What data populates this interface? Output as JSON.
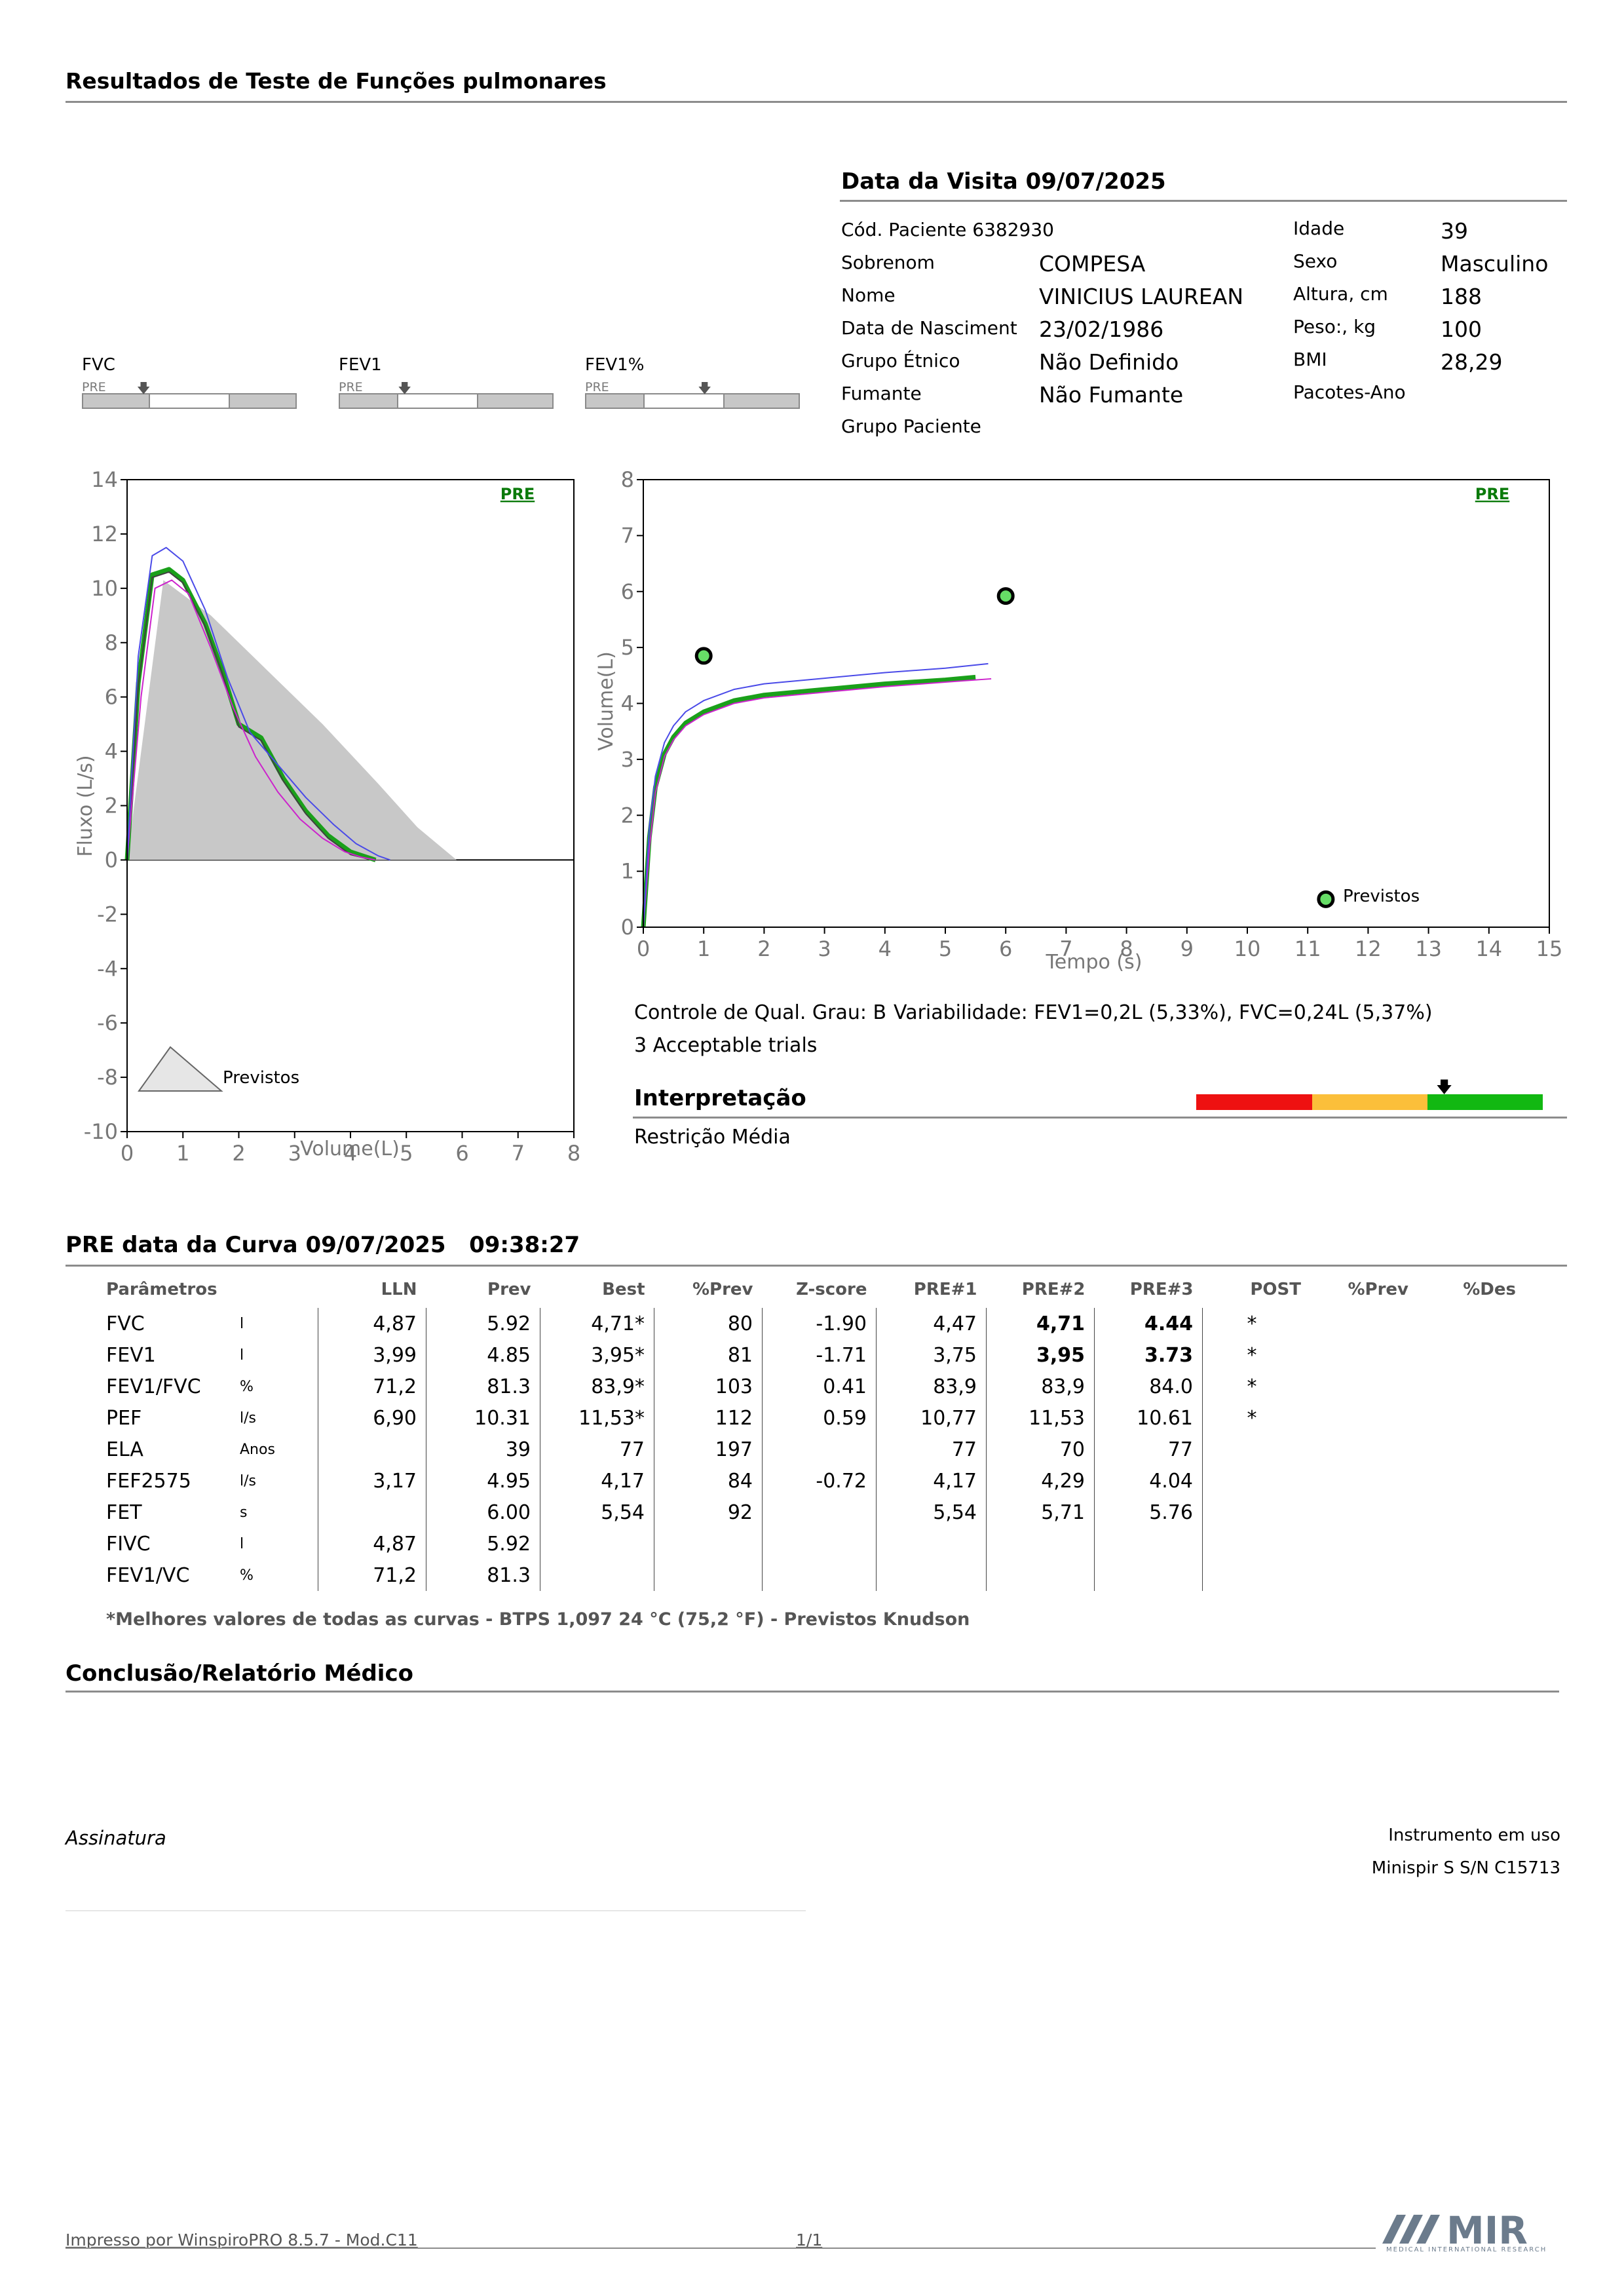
{
  "header": {
    "title": "Resultados de Teste de Funções pulmonares"
  },
  "visit": {
    "title": "Data da Visita 09/07/2025"
  },
  "patient": {
    "code_label": "Cód. Paciente 6382930",
    "surname_label": "Sobrenom",
    "surname": "COMPESA",
    "name_label": "Nome",
    "name": "VINICIUS LAUREAN",
    "birth_label": "Data de Nasciment",
    "birth": "23/02/1986",
    "ethnic_label": "Grupo Étnico",
    "ethnic": "Não Definido",
    "smoker_label": "Fumante",
    "smoker": "Não Fumante",
    "group_label": "Grupo Paciente",
    "age_label": "Idade",
    "age": "39",
    "sex_label": "Sexo",
    "sex": "Masculino",
    "height_label": "Altura, cm",
    "height": "188",
    "weight_label": "Peso:, kg",
    "weight": "100",
    "bmi_label": "BMI",
    "bmi": "28,29",
    "packs_label": "Pacotes-Ano"
  },
  "mini_bars": [
    {
      "label": "FVC",
      "pre": "PRE",
      "white_from": 0.31,
      "white_to": 0.69,
      "marker": 0.28
    },
    {
      "label": "FEV1",
      "pre": "PRE",
      "white_from": 0.27,
      "white_to": 0.65,
      "marker": 0.3
    },
    {
      "label": "FEV1%",
      "pre": "PRE",
      "white_from": 0.27,
      "white_to": 0.65,
      "marker": 0.55
    }
  ],
  "flow_chart": {
    "ylabel": "Fluxo (L/s)",
    "xlabel": "Volume(L)",
    "tag": "PRE",
    "legend": "Previstos",
    "xticks": [
      "0",
      "1",
      "2",
      "3",
      "4",
      "5",
      "6",
      "7",
      "8"
    ],
    "yticks": [
      "14",
      "12",
      "10",
      "8",
      "6",
      "4",
      "2",
      "0",
      "-2",
      "-4",
      "-6",
      "-8",
      "-10"
    ]
  },
  "time_chart": {
    "ylabel": "Volume(L)",
    "xlabel": "Tempo (s)",
    "tag": "PRE",
    "legend": "Previstos",
    "xticks": [
      "0",
      "1",
      "2",
      "3",
      "4",
      "5",
      "6",
      "7",
      "8",
      "9",
      "10",
      "11",
      "12",
      "13",
      "14",
      "15"
    ],
    "yticks": [
      "8",
      "7",
      "6",
      "5",
      "4",
      "3",
      "2",
      "1",
      "0"
    ]
  },
  "chart_data": [
    {
      "type": "line",
      "title": "",
      "xlabel": "Volume(L)",
      "ylabel": "Fluxo (L/s)",
      "xlim": [
        0,
        8
      ],
      "ylim": [
        -10,
        14
      ],
      "series": [
        {
          "name": "Previstos",
          "style": "area",
          "color": "#c8c8c8",
          "x": [
            0,
            0.65,
            1.5,
            2.5,
            3.5,
            4.5,
            5.2,
            5.9
          ],
          "y": [
            0,
            10.3,
            9.0,
            7.0,
            5.0,
            2.8,
            1.2,
            0
          ]
        },
        {
          "style": "line",
          "color": "#1aa01a",
          "x": [
            0,
            0.2,
            0.45,
            0.75,
            1.0,
            1.4,
            1.7,
            2.0,
            2.4,
            2.8,
            3.2,
            3.6,
            4.0,
            4.3,
            4.45
          ],
          "y": [
            0,
            6.5,
            10.5,
            10.7,
            10.3,
            8.7,
            7.0,
            5.0,
            4.5,
            3.0,
            1.8,
            0.9,
            0.3,
            0.1,
            0
          ]
        },
        {
          "style": "line",
          "color": "#404040",
          "x": [
            0,
            0.2,
            0.45,
            0.75,
            1.0,
            1.4,
            1.7,
            2.0,
            2.4,
            2.8,
            3.2,
            3.6,
            4.0,
            4.3,
            4.45
          ],
          "y": [
            0,
            6.4,
            10.4,
            10.6,
            10.2,
            8.6,
            6.9,
            4.9,
            4.4,
            2.9,
            1.7,
            0.8,
            0.2,
            0.05,
            0
          ]
        },
        {
          "style": "line",
          "color": "#cc22cc",
          "x": [
            0,
            0.25,
            0.5,
            0.8,
            1.1,
            1.5,
            1.9,
            2.3,
            2.7,
            3.1,
            3.5,
            3.9,
            4.2,
            4.44
          ],
          "y": [
            0,
            6.0,
            10.0,
            10.3,
            9.8,
            7.8,
            5.6,
            3.8,
            2.5,
            1.5,
            0.8,
            0.3,
            0.1,
            0
          ]
        },
        {
          "style": "line",
          "color": "#4a4ae8",
          "x": [
            0,
            0.2,
            0.45,
            0.7,
            1.0,
            1.4,
            1.8,
            2.2,
            2.7,
            3.2,
            3.7,
            4.1,
            4.5,
            4.71
          ],
          "y": [
            0,
            7.5,
            11.2,
            11.5,
            11.0,
            9.2,
            6.7,
            4.7,
            3.5,
            2.3,
            1.3,
            0.6,
            0.15,
            0
          ]
        }
      ]
    },
    {
      "type": "line",
      "title": "",
      "xlabel": "Tempo (s)",
      "ylabel": "Volume(L)",
      "xlim": [
        0,
        15
      ],
      "ylim": [
        0,
        8
      ],
      "series": [
        {
          "style": "line",
          "color": "#1aa01a",
          "x": [
            0,
            0.1,
            0.2,
            0.35,
            0.5,
            0.7,
            1.0,
            1.5,
            2,
            3,
            4,
            5,
            5.5
          ],
          "y": [
            0,
            1.6,
            2.5,
            3.1,
            3.4,
            3.65,
            3.85,
            4.05,
            4.15,
            4.25,
            4.35,
            4.42,
            4.47
          ]
        },
        {
          "style": "line",
          "color": "#cc22cc",
          "x": [
            0,
            0.1,
            0.2,
            0.35,
            0.5,
            0.7,
            1.0,
            1.5,
            2,
            3,
            4,
            5,
            5.76
          ],
          "y": [
            0,
            1.4,
            2.4,
            3.05,
            3.35,
            3.6,
            3.8,
            4.0,
            4.1,
            4.2,
            4.3,
            4.38,
            4.44
          ]
        },
        {
          "style": "line",
          "color": "#4a4ae8",
          "x": [
            0,
            0.1,
            0.2,
            0.35,
            0.5,
            0.7,
            1.0,
            1.5,
            2,
            3,
            4,
            5,
            5.71
          ],
          "y": [
            0,
            1.8,
            2.7,
            3.3,
            3.6,
            3.85,
            4.05,
            4.25,
            4.35,
            4.45,
            4.55,
            4.63,
            4.71
          ]
        },
        {
          "name": "Previstos",
          "style": "points",
          "color": "#66dd66",
          "x": [
            1.0,
            6.0,
            11.3
          ],
          "y": [
            4.85,
            5.92,
            0.5
          ]
        }
      ]
    }
  ],
  "quality": {
    "grade": "Controle de Qual. Grau: B",
    "variability": "Variabilidade: FEV1=0,2L (5,33%), FVC=0,24L (5,37%)",
    "trials": "3 Acceptable trials"
  },
  "interpretation": {
    "title": "Interpretação",
    "result": "Restrição Média",
    "segments": [
      {
        "color": "#ee1111"
      },
      {
        "color": "#fbbf3a"
      },
      {
        "color": "#12b812"
      }
    ],
    "marker_fraction": 0.7
  },
  "curve": {
    "title": "PRE data da Curva 09/07/2025",
    "time": "09:38:27"
  },
  "table": {
    "headers": [
      "Parâmetros",
      "",
      "LLN",
      "Prev",
      "Best",
      "%Prev",
      "Z-score",
      "PRE#1",
      "PRE#2",
      "PRE#3",
      "POST",
      "%Prev",
      "%Des"
    ],
    "rows": [
      [
        "FVC",
        "l",
        "4,87",
        "5.92",
        "4,71*",
        "80",
        "-1.90",
        "4,47",
        "4,71",
        "4.44",
        "*",
        "",
        ""
      ],
      [
        "FEV1",
        "l",
        "3,99",
        "4.85",
        "3,95*",
        "81",
        "-1.71",
        "3,75",
        "3,95",
        "3.73",
        "*",
        "",
        ""
      ],
      [
        "FEV1/FVC",
        "%",
        "71,2",
        "81.3",
        "83,9*",
        "103",
        "0.41",
        "83,9",
        "83,9",
        "84.0",
        "*",
        "",
        ""
      ],
      [
        "PEF",
        "l/s",
        "6,90",
        "10.31",
        "11,53*",
        "112",
        "0.59",
        "10,77",
        "11,53",
        "10.61",
        "*",
        "",
        ""
      ],
      [
        "ELA",
        "Anos",
        "",
        "39",
        "77",
        "197",
        "",
        "77",
        "70",
        "77",
        "",
        "",
        ""
      ],
      [
        "FEF2575",
        "l/s",
        "3,17",
        "4.95",
        "4,17",
        "84",
        "-0.72",
        "4,17",
        "4,29",
        "4.04",
        "",
        "",
        ""
      ],
      [
        "FET",
        "s",
        "",
        "6.00",
        "5,54",
        "92",
        "",
        "5,54",
        "5,71",
        "5.76",
        "",
        "",
        ""
      ],
      [
        "FIVC",
        "l",
        "4,87",
        "5.92",
        "",
        "",
        "",
        "",
        "",
        "",
        "",
        "",
        ""
      ],
      [
        "FEV1/VC",
        "%",
        "71,2",
        "81.3",
        "",
        "",
        "",
        "",
        "",
        "",
        "",
        "",
        ""
      ]
    ],
    "note": "*Melhores valores de todas as curvas - BTPS  1,097  24 °C  (75,2 °F) - Previstos Knudson"
  },
  "conclusion": {
    "title": "Conclusão/Relatório Médico"
  },
  "signature": {
    "label": "Assinatura"
  },
  "instrument": {
    "label": "Instrumento em uso",
    "value": "Minispir S S/N C15713"
  },
  "footer": {
    "printed_by": "Impresso por WinspiroPRO  8.5.7 - Mod.C11",
    "page": "1/1"
  },
  "logo": {
    "text": "MIR",
    "subtitle": "MEDICAL INTERNATIONAL RESEARCH"
  }
}
